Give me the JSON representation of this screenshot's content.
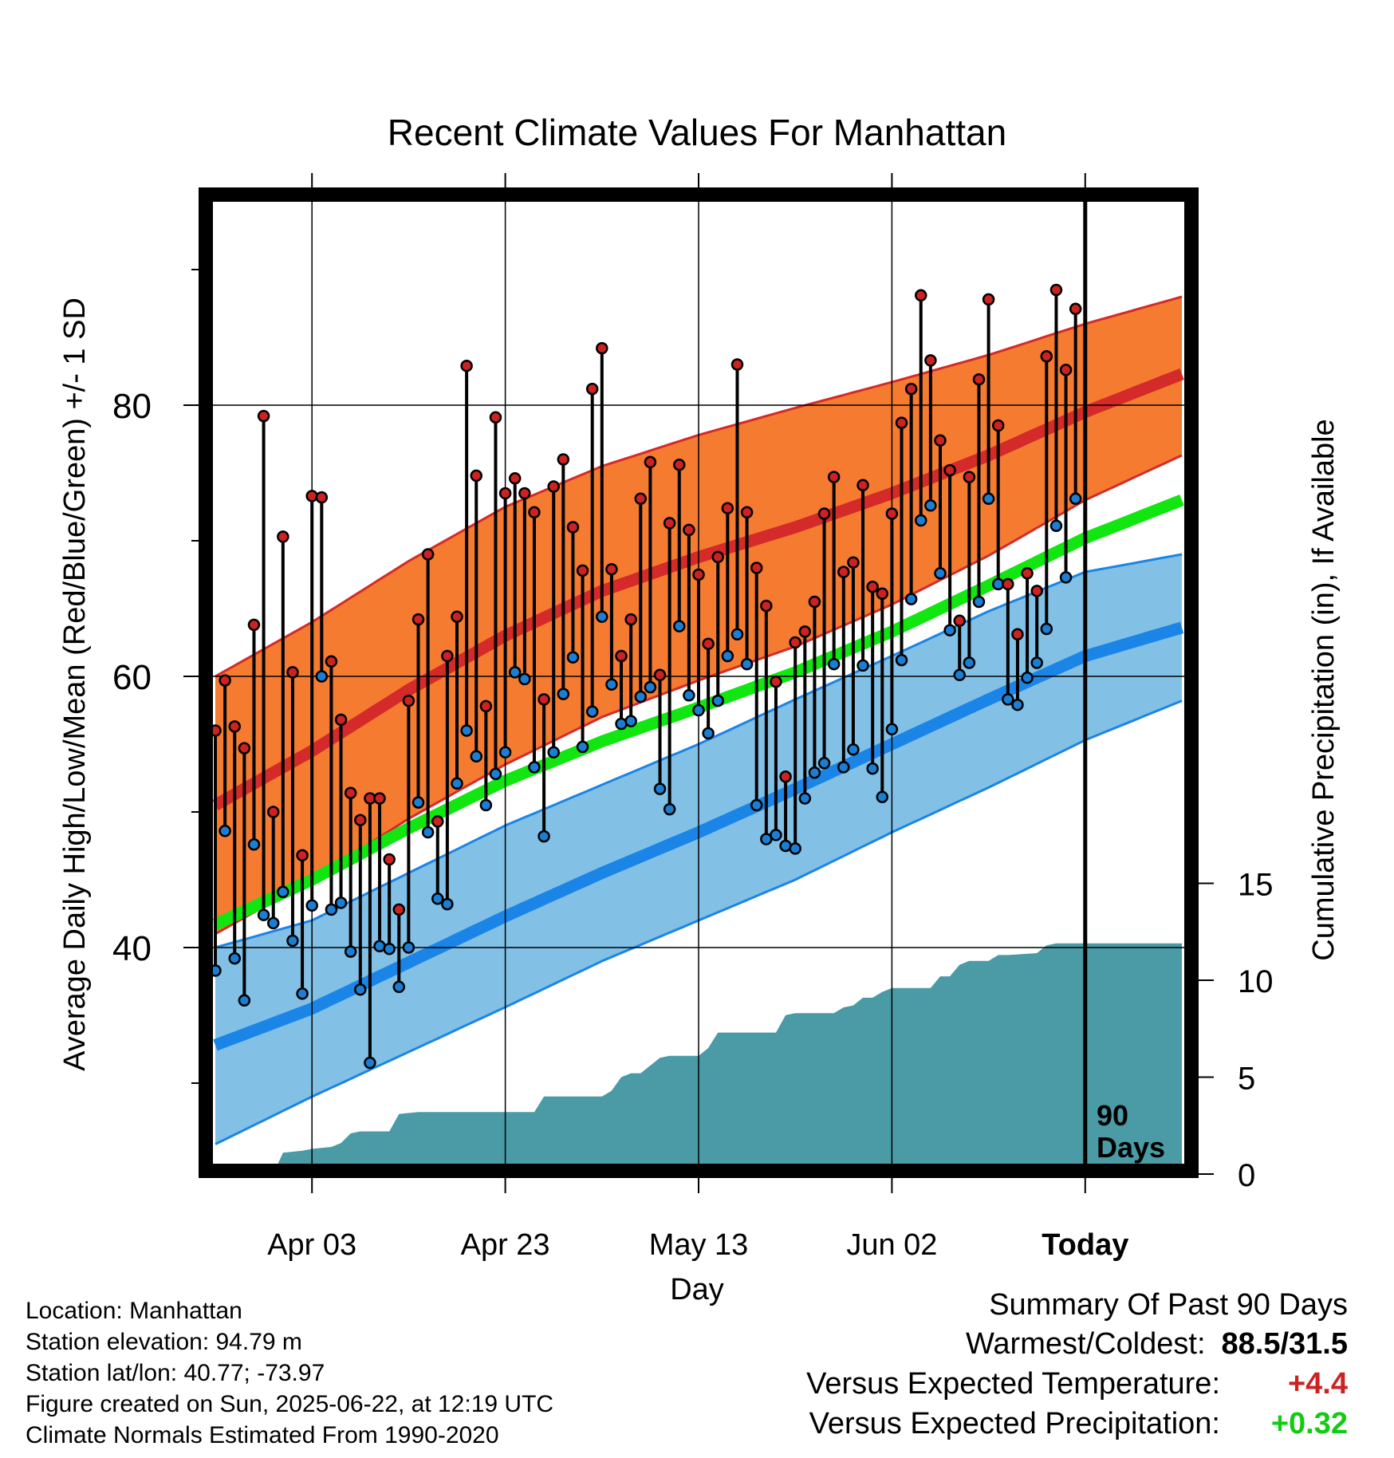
{
  "chart_data": {
    "type": "line",
    "title": "Recent Climate Values For Manhattan",
    "xlabel": "Day",
    "ylabel_left": "Average Daily High/Low/Mean (Red/Blue/Green) +/- 1 SD",
    "ylabel_right": "Cumulative Precipitation (in), If Available",
    "x_tick_labels": [
      "Apr 03",
      "Apr 23",
      "May 13",
      "Jun 02",
      "Today"
    ],
    "x_tick_days": [
      10,
      30,
      50,
      70,
      90
    ],
    "x_range": [
      0,
      100
    ],
    "ylim_left": [
      22,
      95
    ],
    "y_tick_labels_left": [
      "40",
      "60",
      "80"
    ],
    "y_tick_values_left": [
      40,
      60,
      80
    ],
    "y_minor_ticks_left": [
      30,
      50,
      70,
      90
    ],
    "ylim_right": [
      0,
      15
    ],
    "y_tick_labels_right": [
      "0",
      "5",
      "10",
      "15"
    ],
    "y_tick_values_right": [
      0,
      5,
      10,
      15
    ],
    "today_marker": {
      "day": 90,
      "label_line1": "90",
      "label_line2": "Days"
    },
    "grid": true,
    "normals": {
      "days": [
        0,
        10,
        20,
        30,
        40,
        50,
        60,
        70,
        80,
        90,
        100
      ],
      "high_upper": [
        60.0,
        64.0,
        68.5,
        72.5,
        75.5,
        77.8,
        79.8,
        81.7,
        83.7,
        86.0,
        88.0
      ],
      "high_mean": [
        50.5,
        54.5,
        59.0,
        63.0,
        66.3,
        68.8,
        71.0,
        73.5,
        76.3,
        79.5,
        82.3
      ],
      "high_lower": [
        41.0,
        45.0,
        49.5,
        53.5,
        57.0,
        59.7,
        62.2,
        65.3,
        68.9,
        73.0,
        76.3
      ],
      "mean": [
        41.7,
        45.0,
        48.8,
        52.3,
        55.2,
        57.7,
        60.3,
        63.3,
        66.7,
        70.2,
        73.0
      ],
      "low_upper": [
        40.0,
        42.0,
        45.5,
        49.0,
        52.0,
        55.0,
        58.3,
        61.5,
        64.8,
        67.7,
        69.0
      ],
      "low_mean": [
        32.8,
        35.5,
        38.9,
        42.3,
        45.5,
        48.5,
        51.7,
        55.0,
        58.3,
        61.5,
        63.6
      ],
      "low_lower": [
        25.5,
        29.0,
        32.3,
        35.6,
        39.0,
        42.0,
        45.0,
        48.5,
        51.8,
        55.3,
        58.2
      ]
    },
    "series": [
      {
        "name": "High",
        "values": [
          56.0,
          59.7,
          56.3,
          54.7,
          63.8,
          79.2,
          50.0,
          70.3,
          60.3,
          46.8,
          73.3,
          73.2,
          61.1,
          56.8,
          51.4,
          49.4,
          51.0,
          51.0,
          46.5,
          42.8,
          58.2,
          64.2,
          69.0,
          49.3,
          61.5,
          64.4,
          82.9,
          74.8,
          57.8,
          79.1,
          73.5,
          74.6,
          73.5,
          72.1,
          58.3,
          74.0,
          76.0,
          71.0,
          67.8,
          81.2,
          84.2,
          67.9,
          61.5,
          64.2,
          73.1,
          75.8,
          60.1,
          71.3,
          75.6,
          70.8,
          67.5,
          62.4,
          68.8,
          72.4,
          83.0,
          72.1,
          68.0,
          65.2,
          59.6,
          52.6,
          62.5,
          63.3,
          65.5,
          72.0,
          74.7,
          67.7,
          68.4,
          74.1,
          66.6,
          66.1,
          72.0,
          78.7,
          81.2,
          88.1,
          83.3,
          77.4,
          75.2,
          64.1,
          74.7,
          81.9,
          87.8,
          78.5,
          66.8,
          63.1,
          67.6,
          66.3,
          83.6,
          88.5,
          82.6,
          87.1
        ]
      },
      {
        "name": "Low",
        "values": [
          38.3,
          48.6,
          39.2,
          36.1,
          47.6,
          42.4,
          41.8,
          44.1,
          40.5,
          36.6,
          43.1,
          60.0,
          42.8,
          43.3,
          39.7,
          36.9,
          31.5,
          40.1,
          39.9,
          37.1,
          40.0,
          50.7,
          48.5,
          43.6,
          43.2,
          52.1,
          56.0,
          54.1,
          50.5,
          52.8,
          54.4,
          60.3,
          59.8,
          53.3,
          48.2,
          54.4,
          58.7,
          61.4,
          54.8,
          57.4,
          64.4,
          59.4,
          56.5,
          56.7,
          58.5,
          59.2,
          51.7,
          50.2,
          63.7,
          58.6,
          57.5,
          55.8,
          58.2,
          61.5,
          63.1,
          60.9,
          50.5,
          48.0,
          48.3,
          47.5,
          47.3,
          51.0,
          52.9,
          53.6,
          60.9,
          53.3,
          54.6,
          60.8,
          53.2,
          51.1,
          56.1,
          61.2,
          65.7,
          71.5,
          72.6,
          67.6,
          63.4,
          60.1,
          61.0,
          65.5,
          73.1,
          66.8,
          58.3,
          57.9,
          59.9,
          61.0,
          63.5,
          71.1,
          67.3,
          73.1
        ]
      }
    ],
    "precip_cumulative": {
      "days": [
        0,
        6,
        7,
        9,
        10,
        12,
        13,
        14,
        15,
        18,
        19,
        21,
        22,
        33,
        34,
        40,
        41,
        42,
        43,
        44,
        46,
        47,
        48,
        50,
        51,
        52,
        58,
        59,
        60,
        64,
        65,
        66,
        67,
        68,
        69,
        70,
        71,
        72,
        73,
        74,
        75,
        76,
        77,
        78,
        80,
        81,
        82,
        85,
        86,
        87,
        100
      ],
      "values": [
        0.0,
        0.0,
        1.1,
        1.2,
        1.3,
        1.4,
        1.6,
        2.1,
        2.2,
        2.2,
        3.1,
        3.2,
        3.2,
        3.2,
        4.0,
        4.0,
        4.3,
        5.0,
        5.2,
        5.2,
        6.0,
        6.1,
        6.1,
        6.1,
        6.5,
        7.3,
        7.3,
        8.2,
        8.3,
        8.3,
        8.6,
        8.7,
        9.1,
        9.1,
        9.4,
        9.6,
        9.6,
        9.6,
        9.6,
        9.6,
        10.2,
        10.2,
        10.8,
        11.0,
        11.0,
        11.3,
        11.3,
        11.4,
        11.8,
        11.9,
        11.9
      ]
    },
    "colors": {
      "high_band": "#f47b30",
      "high_mean": "#d42a2a",
      "mean": "#11e611",
      "low_band": "#82c0e6",
      "low_mean": "#1a85e6",
      "precip": "#4a9ba5",
      "high_dot": "#cc2222",
      "low_dot": "#1a7fd4"
    }
  },
  "footer": {
    "location": "Location: Manhattan",
    "elevation": "Station elevation: 94.79 m",
    "latlon": "Station lat/lon: 40.77; -73.97",
    "created": "Figure created on Sun, 2025-06-22, at 12:19 UTC",
    "normals": "Climate Normals Estimated From 1990-2020"
  },
  "summary": {
    "title": "Summary Of Past 90 Days",
    "warmest_label": "Warmest/Coldest:",
    "warmest_value": "88.5/31.5",
    "temp_label": "Versus Expected Temperature:",
    "temp_value": "+4.4",
    "temp_color": "#cc2222",
    "precip_label": "Versus Expected Precipitation:",
    "precip_value": "+0.32",
    "precip_color": "#11cc11"
  }
}
